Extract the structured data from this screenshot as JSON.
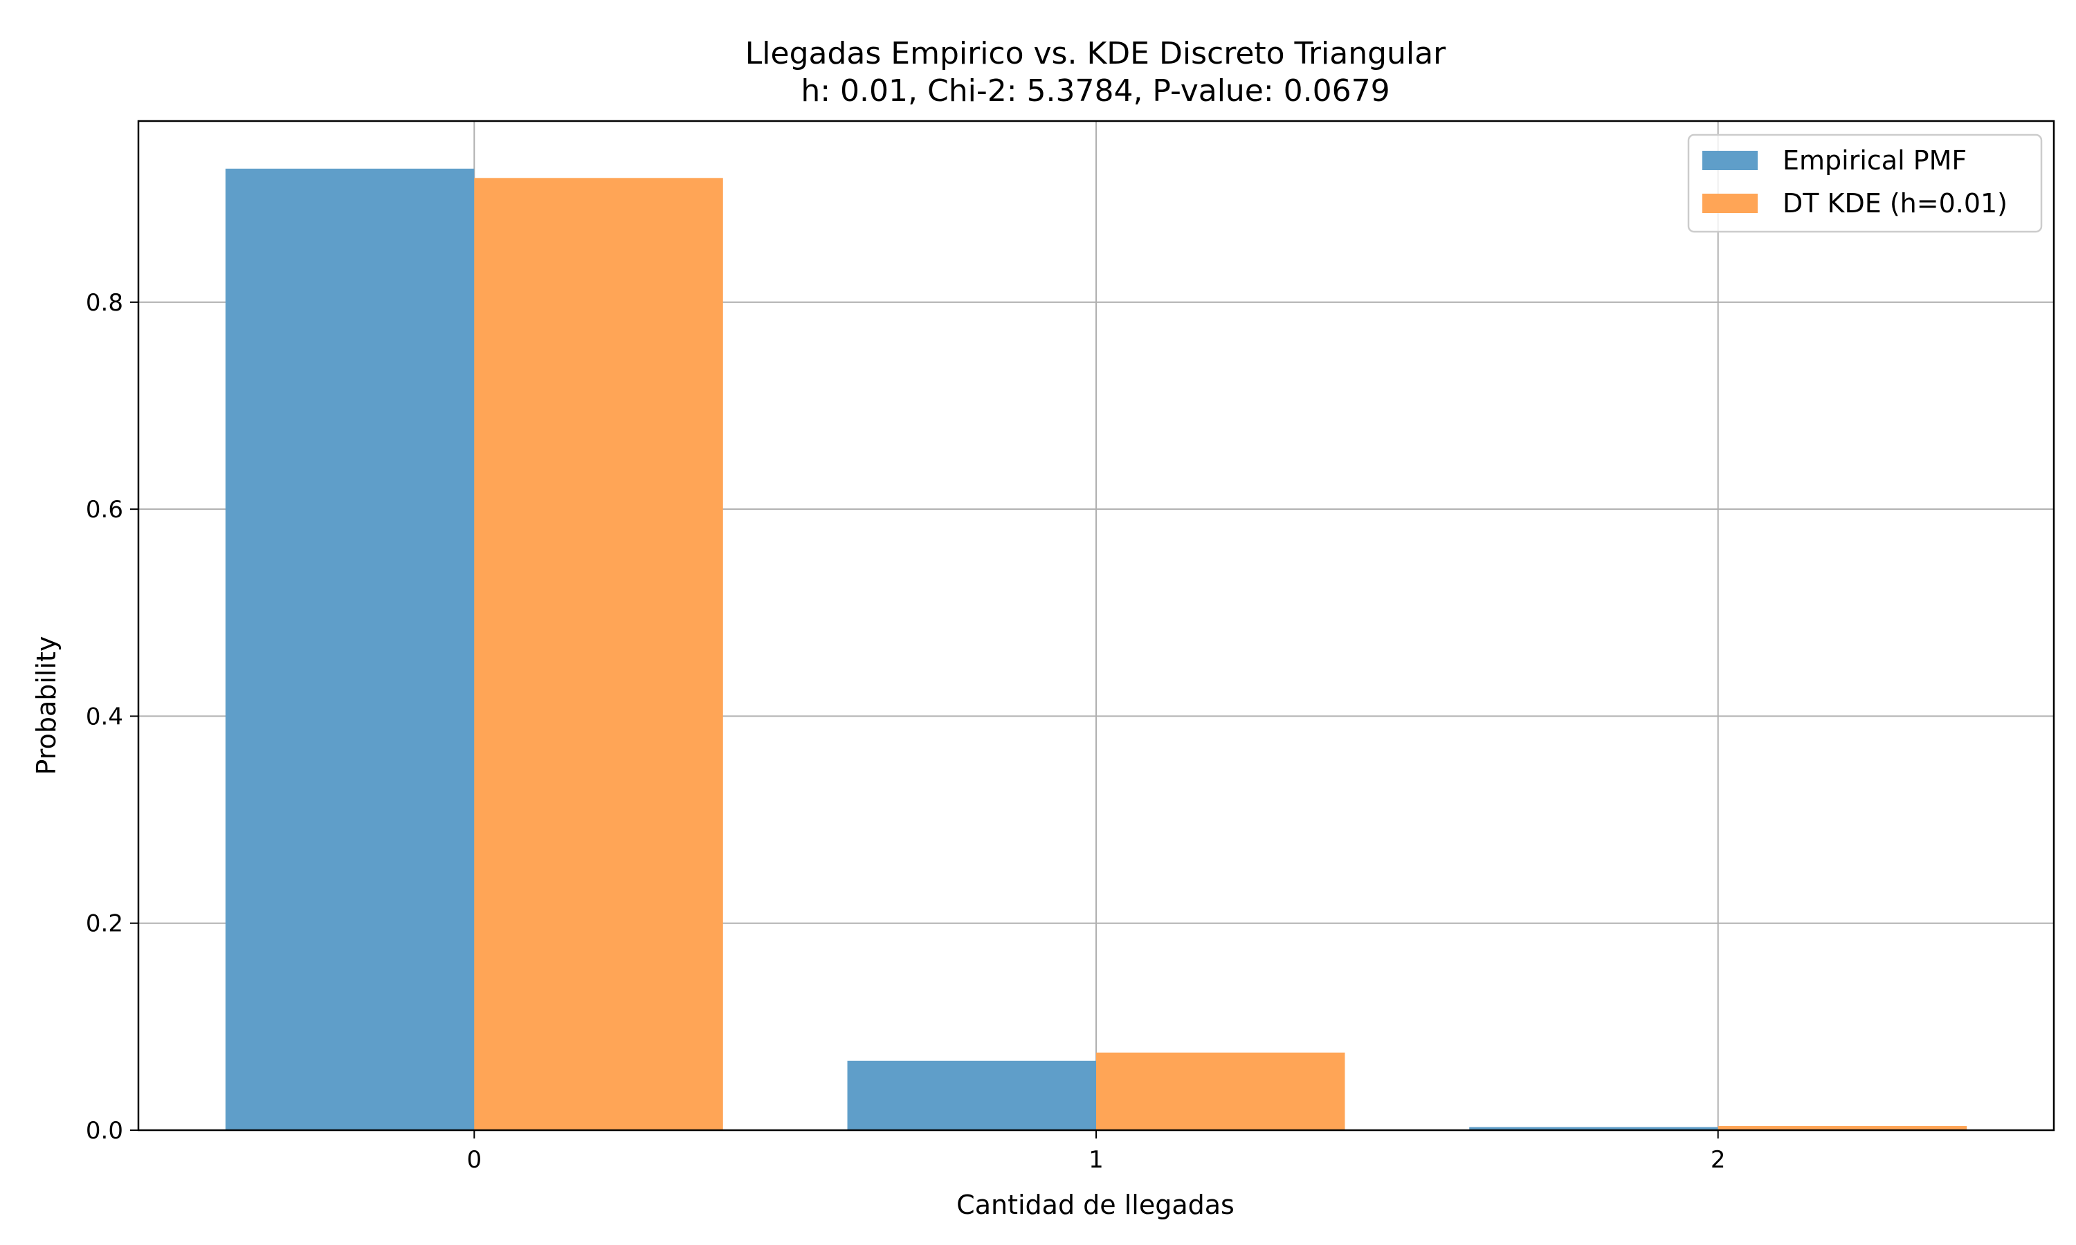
{
  "chart_data": {
    "type": "bar",
    "title": "Llegadas Empirico vs. KDE Discreto Triangular",
    "subtitle": "h: 0.01, Chi-2: 5.3784, P-value: 0.0679",
    "xlabel": "Cantidad de llegadas",
    "ylabel": "Probability",
    "categories": [
      0,
      1,
      2
    ],
    "x_tick_labels": [
      "0",
      "1",
      "2"
    ],
    "y_ticks": [
      0.0,
      0.2,
      0.4,
      0.6,
      0.8
    ],
    "y_tick_labels": [
      "0.0",
      "0.2",
      "0.4",
      "0.6",
      "0.8"
    ],
    "xlim": [
      -0.54,
      2.54
    ],
    "ylim": [
      0,
      0.975
    ],
    "grid": true,
    "legend_position": "top-right",
    "series": [
      {
        "name": "Empirical PMF",
        "color": "#5f9ec9",
        "values": [
          0.929,
          0.067,
          0.003
        ]
      },
      {
        "name": "DT KDE (h=0.01)",
        "color": "#ffa556",
        "values": [
          0.92,
          0.075,
          0.004
        ]
      }
    ]
  }
}
